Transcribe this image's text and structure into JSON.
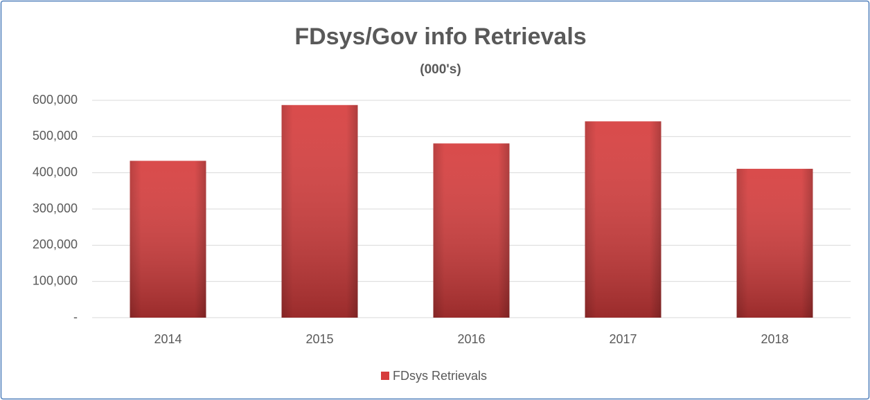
{
  "chart_data": {
    "type": "bar",
    "title": "FDsys/Gov info Retrievals",
    "subtitle": "(000's)",
    "categories": [
      "2014",
      "2015",
      "2016",
      "2017",
      "2018"
    ],
    "series": [
      {
        "name": "FDsys Retrievals",
        "color": "#d63c3c",
        "values": [
          433000,
          587000,
          481000,
          542000,
          411000
        ]
      }
    ],
    "ylim": [
      0,
      600000
    ],
    "yticks": [
      {
        "value": 0,
        "label": "-"
      },
      {
        "value": 100000,
        "label": "100,000"
      },
      {
        "value": 200000,
        "label": "200,000"
      },
      {
        "value": 300000,
        "label": "300,000"
      },
      {
        "value": 400000,
        "label": "400,000"
      },
      {
        "value": 500000,
        "label": "500,000"
      },
      {
        "value": 600000,
        "label": "600,000"
      }
    ],
    "grid": true,
    "legend": "bottom"
  }
}
